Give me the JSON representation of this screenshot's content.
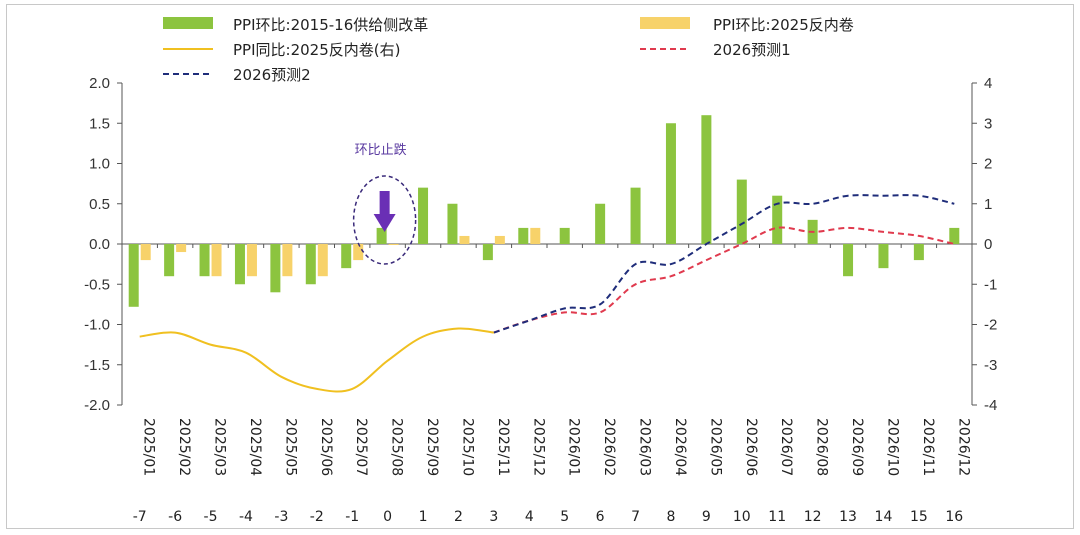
{
  "chart_data": {
    "type": "bar",
    "categories": [
      "2025/01",
      "2025/02",
      "2025/03",
      "2025/04",
      "2025/05",
      "2025/06",
      "2025/07",
      "2025/08",
      "2025/09",
      "2025/10",
      "2025/11",
      "2025/12",
      "2026/01",
      "2026/02",
      "2026/03",
      "2026/04",
      "2026/05",
      "2026/06",
      "2026/07",
      "2026/08",
      "2026/09",
      "2026/10",
      "2026/11",
      "2026/12"
    ],
    "index_labels": [
      "-7",
      "-6",
      "-5",
      "-4",
      "-3",
      "-2",
      "-1",
      "0",
      "1",
      "2",
      "3",
      "4",
      "5",
      "6",
      "7",
      "8",
      "9",
      "10",
      "11",
      "12",
      "13",
      "14",
      "15",
      "16"
    ],
    "ylim": [
      -2.0,
      2.0
    ],
    "yticks": [
      "2.0",
      "1.5",
      "1.0",
      "0.5",
      "0.0",
      "-0.5",
      "-1.0",
      "-1.5",
      "-2.0"
    ],
    "y2lim": [
      -4,
      4
    ],
    "y2ticks": [
      "4",
      "3",
      "2",
      "1",
      "0",
      "-1",
      "-2",
      "-3",
      "-4"
    ],
    "series": [
      {
        "name": "PPI环比:2015-16供给侧改革",
        "kind": "bar",
        "axis": "left",
        "color": "#8cc43f",
        "values": [
          -0.78,
          -0.4,
          -0.4,
          -0.5,
          -0.6,
          -0.5,
          -0.3,
          0.2,
          0.7,
          0.5,
          -0.2,
          0.2,
          0.2,
          0.5,
          0.7,
          1.5,
          1.6,
          0.8,
          0.6,
          0.3,
          -0.4,
          -0.3,
          -0.2,
          0.2
        ]
      },
      {
        "name": "PPI环比:2025反内卷",
        "kind": "bar",
        "axis": "left",
        "color": "#f7d26a",
        "values": [
          -0.2,
          -0.1,
          -0.4,
          -0.4,
          -0.4,
          -0.4,
          -0.2,
          0.0,
          null,
          0.1,
          0.1,
          0.2,
          null,
          null,
          null,
          null,
          null,
          null,
          null,
          null,
          null,
          null,
          null,
          null
        ]
      },
      {
        "name": "PPI同比:2025反内卷(右)",
        "kind": "line",
        "axis": "right",
        "color": "#f0c020",
        "dash": "solid",
        "values": [
          -2.3,
          -2.2,
          -2.5,
          -2.7,
          -3.3,
          -3.6,
          -3.6,
          -2.9,
          -2.3,
          -2.1,
          -2.2,
          null,
          null,
          null,
          null,
          null,
          null,
          null,
          null,
          null,
          null,
          null,
          null,
          null
        ]
      },
      {
        "name": "2026预测1",
        "kind": "line",
        "axis": "right",
        "color": "#e03a4e",
        "dash": "dashed",
        "values": [
          null,
          null,
          null,
          null,
          null,
          null,
          null,
          null,
          null,
          null,
          -2.2,
          -1.9,
          -1.7,
          -1.7,
          -1.0,
          -0.8,
          -0.4,
          0.0,
          0.4,
          0.3,
          0.4,
          0.3,
          0.2,
          0.0
        ]
      },
      {
        "name": "2026预测2",
        "kind": "line",
        "axis": "right",
        "color": "#1f2d7a",
        "dash": "dashed",
        "values": [
          null,
          null,
          null,
          null,
          null,
          null,
          null,
          null,
          null,
          null,
          -2.2,
          -1.9,
          -1.6,
          -1.5,
          -0.5,
          -0.5,
          0.0,
          0.5,
          1.0,
          1.0,
          1.2,
          1.2,
          1.2,
          1.0
        ]
      }
    ],
    "annotation": {
      "text": "环比止跌",
      "category": "2025/08"
    },
    "legend_position": "top",
    "grid": false
  }
}
